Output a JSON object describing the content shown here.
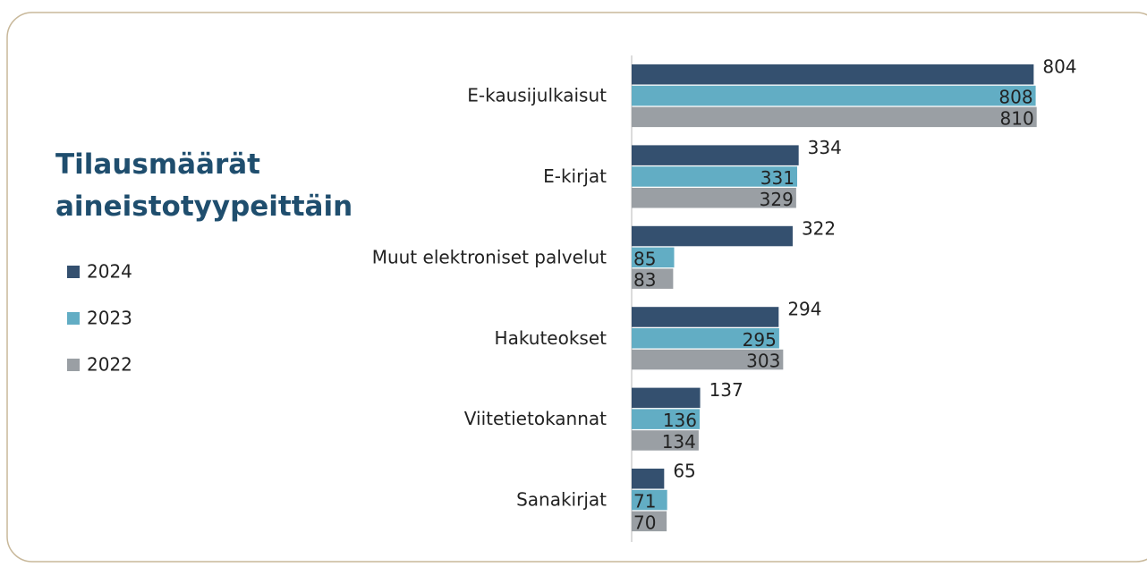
{
  "chart_data": {
    "type": "bar",
    "orientation": "horizontal",
    "title": "Tilausmäärät aineistotyypeittäin",
    "categories": [
      "E-kausijulkaisut",
      "E-kirjat",
      "Muut elektroniset palvelut",
      "Hakuteokset",
      "Viitetietokannat",
      "Sanakirjat"
    ],
    "series": [
      {
        "name": "2024",
        "color": "#34506f",
        "values": [
          804,
          334,
          322,
          294,
          137,
          65
        ]
      },
      {
        "name": "2023",
        "color": "#62adc4",
        "values": [
          808,
          331,
          85,
          295,
          136,
          71
        ]
      },
      {
        "name": "2022",
        "color": "#9a9fa4",
        "values": [
          810,
          329,
          83,
          303,
          134,
          70
        ]
      }
    ],
    "xlim": [
      0,
      900
    ],
    "legend": "left"
  }
}
